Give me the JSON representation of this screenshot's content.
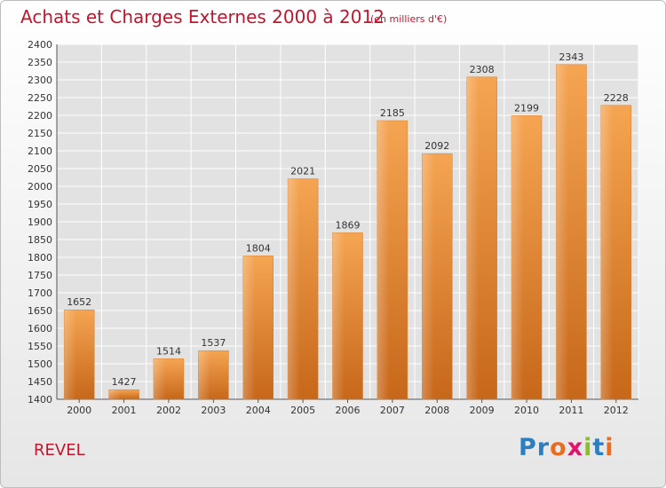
{
  "chart_data": {
    "type": "bar",
    "title": "Achats et Charges Externes 2000 à 2012",
    "subtitle": "(en milliers d'€)",
    "categories": [
      "2000",
      "2001",
      "2002",
      "2003",
      "2004",
      "2005",
      "2006",
      "2007",
      "2008",
      "2009",
      "2010",
      "2011",
      "2012"
    ],
    "values": [
      1652,
      1427,
      1514,
      1537,
      1804,
      2021,
      1869,
      2185,
      2092,
      2308,
      2199,
      2343,
      2228
    ],
    "ylim": [
      1400,
      2400
    ],
    "yticks": [
      1400,
      1450,
      1500,
      1550,
      1600,
      1650,
      1700,
      1750,
      1800,
      1850,
      1900,
      1950,
      2000,
      2050,
      2100,
      2150,
      2200,
      2250,
      2300,
      2350,
      2400
    ],
    "grid": true,
    "bar_color": "#f0963c"
  },
  "place_name": "REVEL",
  "logo": {
    "letters": [
      "P",
      "r",
      "o",
      "x",
      "i",
      "t",
      "i"
    ],
    "colors": [
      "#2b7fc1",
      "#2b7fc1",
      "#e96c1f",
      "#e2156d",
      "#8bbf2a",
      "#2b7fc1",
      "#e96c1f"
    ]
  }
}
